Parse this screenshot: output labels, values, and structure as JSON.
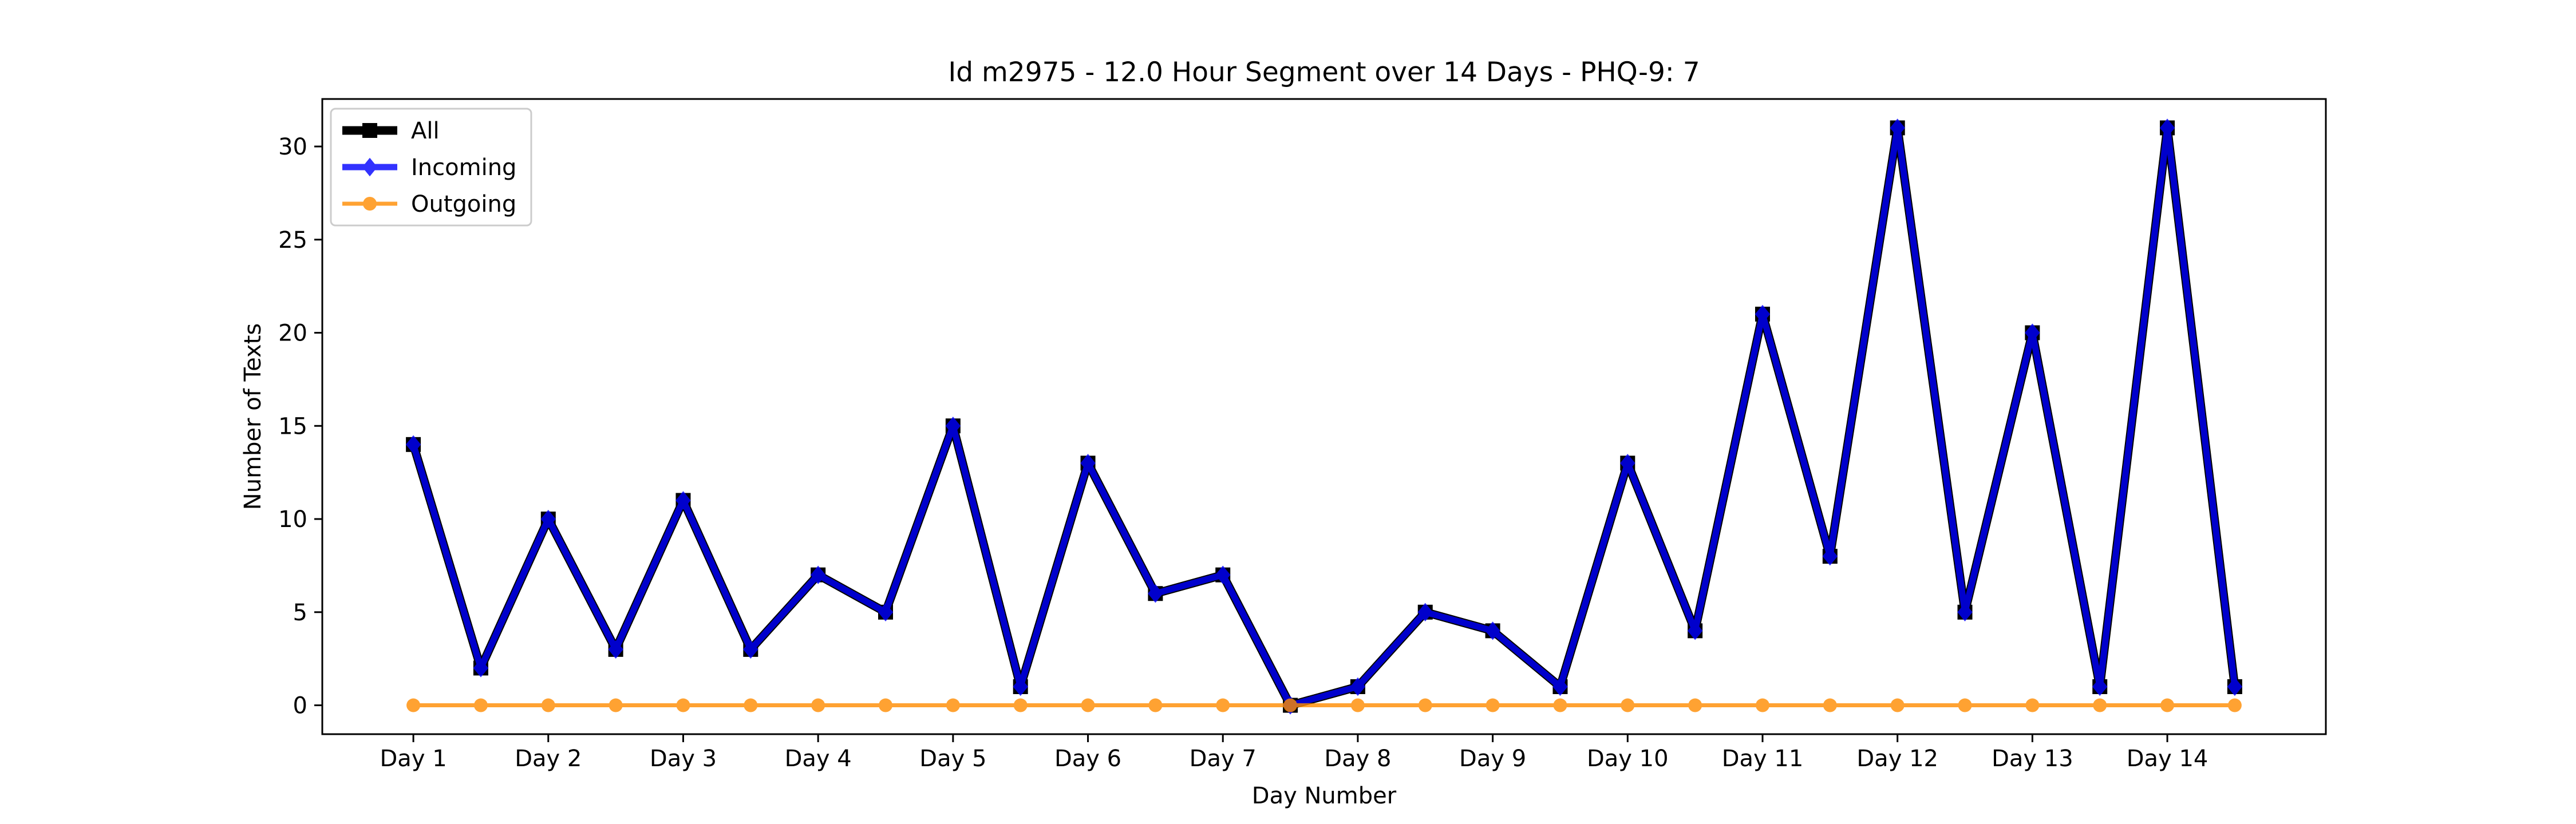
{
  "chart_data": {
    "type": "line",
    "title": "Id m2975 - 12.0 Hour Segment over 14 Days - PHQ-9: 7",
    "xlabel": "Day Number",
    "ylabel": "Number of Texts",
    "x": [
      1,
      2,
      3,
      4,
      5,
      6,
      7,
      8,
      9,
      10,
      11,
      12,
      13,
      14,
      15,
      16,
      17,
      18,
      19,
      20,
      21,
      22,
      23,
      24,
      25,
      26,
      27,
      28
    ],
    "xticks": [
      1,
      3,
      5,
      7,
      9,
      11,
      13,
      15,
      17,
      19,
      21,
      23,
      25,
      27
    ],
    "xtick_labels": [
      "Day 1",
      "Day 2",
      "Day 3",
      "Day 4",
      "Day 5",
      "Day 6",
      "Day 7",
      "Day 8",
      "Day 9",
      "Day 10",
      "Day 11",
      "Day 12",
      "Day 13",
      "Day 14"
    ],
    "xlim": [
      -0.35,
      29.35
    ],
    "ylim": [
      -1.55,
      32.55
    ],
    "yticks": [
      0,
      5,
      10,
      15,
      20,
      25,
      30
    ],
    "ytick_labels": [
      "0",
      "5",
      "10",
      "15",
      "20",
      "25",
      "30"
    ],
    "grid": false,
    "legend_position": "top-left",
    "series": [
      {
        "name": "All",
        "color": "#000000",
        "marker": "square",
        "values": [
          14,
          2,
          10,
          3,
          11,
          3,
          7,
          5,
          15,
          1,
          13,
          6,
          7,
          0,
          1,
          5,
          4,
          1,
          13,
          4,
          21,
          8,
          31,
          5,
          20,
          1,
          31,
          1
        ]
      },
      {
        "name": "Incoming",
        "color": "#0000ff",
        "marker": "diamond",
        "values": [
          14,
          2,
          10,
          3,
          11,
          3,
          7,
          5,
          15,
          1,
          13,
          6,
          7,
          0,
          1,
          5,
          4,
          1,
          13,
          4,
          21,
          8,
          31,
          5,
          20,
          1,
          31,
          1
        ]
      },
      {
        "name": "Outgoing",
        "color": "#ff8c00",
        "marker": "circle",
        "values": [
          0,
          0,
          0,
          0,
          0,
          0,
          0,
          0,
          0,
          0,
          0,
          0,
          0,
          0,
          0,
          0,
          0,
          0,
          0,
          0,
          0,
          0,
          0,
          0,
          0,
          0,
          0,
          0
        ]
      }
    ]
  }
}
